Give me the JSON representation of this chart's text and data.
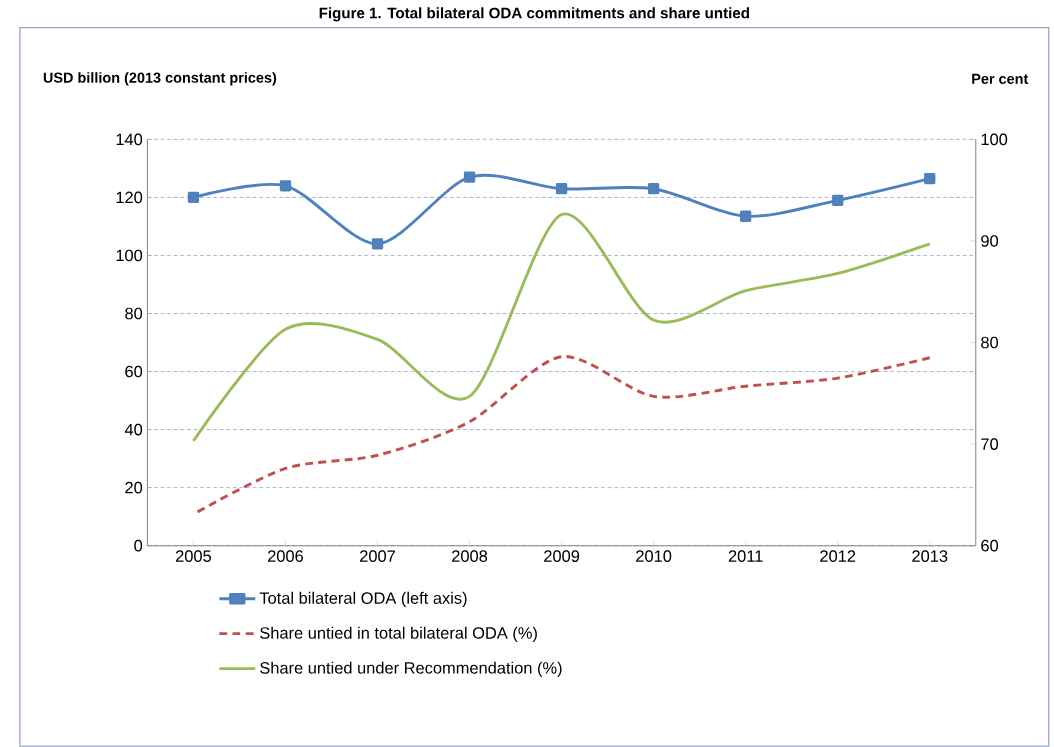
{
  "chart_data": {
    "type": "line",
    "title": "Figure 1.  Total bilateral ODA commitments and share untied",
    "ylabel": "USD billion (2013 constant prices)",
    "y2label": "Per cent",
    "categories": [
      "2005",
      "2006",
      "2007",
      "2008",
      "2009",
      "2010",
      "2011",
      "2012",
      "2013"
    ],
    "series": [
      {
        "name": "Total bilateral ODA (left axis)",
        "color": "#4f81bd",
        "marker": "square",
        "line_style": "solid",
        "values": [
          120,
          124,
          104,
          127,
          123,
          123,
          113.5,
          119,
          126.5
        ]
      },
      {
        "name": "Share untied in total bilateral ODA (%)",
        "color": "#c0504d",
        "marker": "none",
        "line_style": "dashed",
        "axis": "y2",
        "values": [
          63.1,
          67.6,
          68.9,
          72.2,
          78.6,
          74.7,
          75.7,
          76.5,
          78.5
        ]
      },
      {
        "name": "Share untied under Recommendation (%)",
        "color": "#9bbb59",
        "marker": "none",
        "line_style": "solid",
        "axis": "y2",
        "values": [
          70.3,
          81.3,
          80.3,
          74.7,
          92.6,
          82.2,
          85.1,
          86.8,
          89.7
        ]
      }
    ],
    "ylim": [
      0,
      140
    ],
    "yticks": [
      0,
      20,
      40,
      60,
      80,
      100,
      120,
      140
    ],
    "y2lim": [
      60,
      100
    ],
    "y2ticks": [
      60,
      70,
      80,
      90,
      100
    ],
    "grid": "y",
    "legend": "bottom"
  }
}
